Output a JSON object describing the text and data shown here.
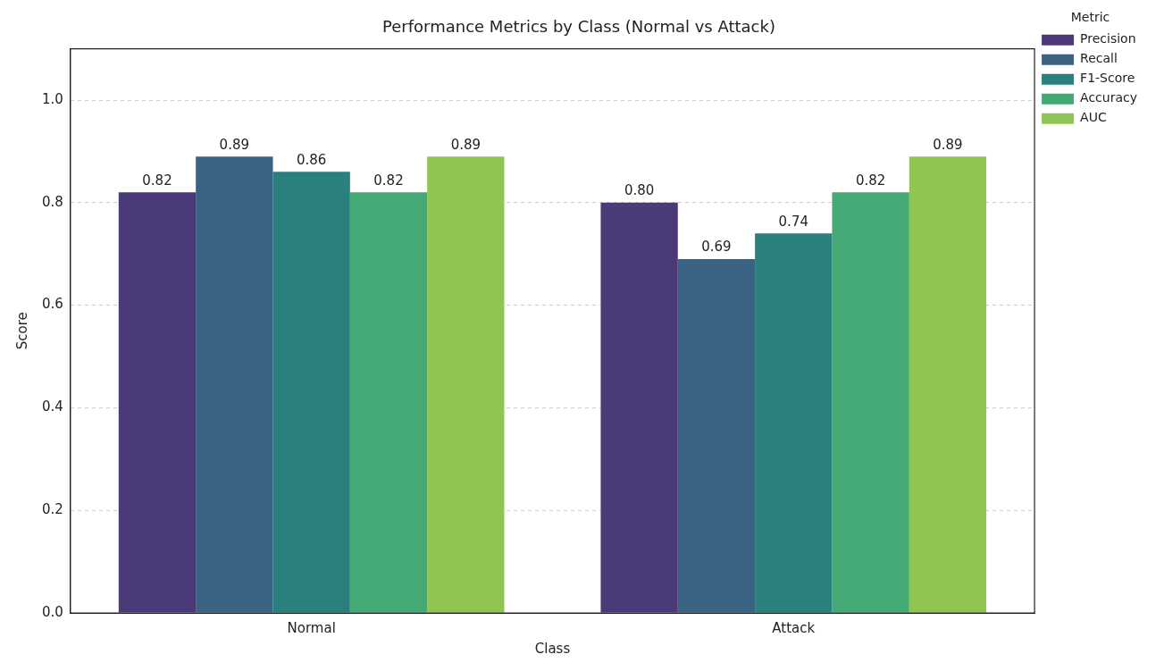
{
  "chart_data": {
    "type": "bar",
    "title": "Performance Metrics by Class (Normal vs Attack)",
    "xlabel": "Class",
    "ylabel": "Score",
    "legend_title": "Metric",
    "categories": [
      "Normal",
      "Attack"
    ],
    "series": [
      {
        "name": "Precision",
        "color": "#4a3b78",
        "values": [
          0.82,
          0.8
        ],
        "value_labels": [
          "0.82",
          "0.80"
        ]
      },
      {
        "name": "Recall",
        "color": "#3a6282",
        "values": [
          0.89,
          0.69
        ],
        "value_labels": [
          "0.89",
          "0.69"
        ]
      },
      {
        "name": "F1-Score",
        "color": "#2a807c",
        "values": [
          0.86,
          0.74
        ],
        "value_labels": [
          "0.86",
          "0.74"
        ]
      },
      {
        "name": "Accuracy",
        "color": "#45a976",
        "values": [
          0.82,
          0.82
        ],
        "value_labels": [
          "0.82",
          "0.82"
        ]
      },
      {
        "name": "AUC",
        "color": "#8fc653",
        "values": [
          0.89,
          0.89
        ],
        "value_labels": [
          "0.89",
          "0.89"
        ]
      }
    ],
    "ylim": [
      0,
      1.1
    ],
    "yticks": [
      {
        "value": 0,
        "label": "0.0"
      },
      0.2,
      0.4,
      0.6,
      0.8,
      {
        "value": 1,
        "label": "1.0"
      }
    ],
    "grid": "y",
    "legend": "top right"
  }
}
